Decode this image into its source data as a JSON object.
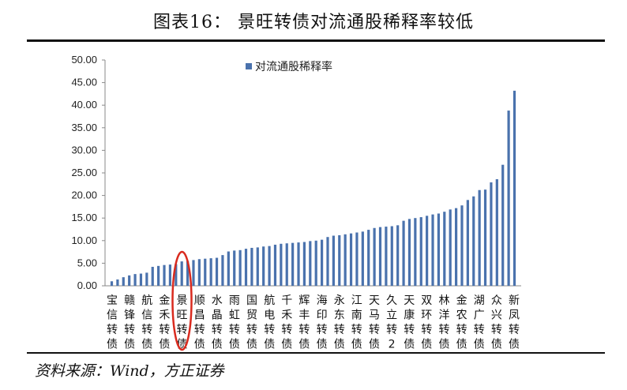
{
  "figure": {
    "title": "图表16：  景旺转债对流通股稀释率较低",
    "source": "资料来源：Wind，方正证券"
  },
  "colors": {
    "bar": "#4a72ad",
    "highlight": "#d92b1f",
    "axis": "#8a8a8a"
  },
  "chart_data": {
    "type": "bar",
    "title": "",
    "xlabel": "",
    "ylabel": "",
    "ylim": [
      0,
      50
    ],
    "yticks": [
      "0.00",
      "5.00",
      "10.00",
      "15.00",
      "20.00",
      "25.00",
      "30.00",
      "35.00",
      "40.00",
      "45.00",
      "50.00"
    ],
    "grid": false,
    "legend_position": "top-center",
    "series": [
      {
        "name": "对流通股稀释率",
        "values": [
          1.0,
          1.4,
          1.9,
          2.3,
          2.6,
          2.7,
          2.9,
          4.2,
          4.4,
          4.6,
          4.7,
          4.8,
          5.4,
          5.5,
          5.7,
          5.9,
          6.0,
          6.1,
          6.2,
          6.8,
          7.6,
          7.8,
          7.9,
          8.2,
          8.4,
          8.5,
          8.7,
          8.8,
          9.1,
          9.3,
          9.4,
          9.5,
          9.6,
          9.7,
          9.9,
          10.0,
          10.2,
          10.8,
          11.1,
          11.2,
          11.4,
          11.6,
          11.8,
          12.0,
          12.4,
          12.8,
          13.0,
          13.1,
          13.2,
          13.4,
          14.4,
          14.8,
          15.0,
          15.2,
          15.5,
          15.8,
          16.0,
          16.4,
          16.9,
          17.2,
          17.8,
          19.0,
          19.8,
          21.2,
          21.3,
          22.9,
          23.6,
          26.8,
          38.8,
          43.2
        ]
      }
    ],
    "x_labels_shown": [
      "宝信转债",
      "赣锋转债",
      "航信转债",
      "金禾转债",
      "景旺转债",
      "顺昌转债",
      "水晶转债",
      "雨虹转债",
      "国贸转债",
      "航电转债",
      "千禾转债",
      "辉丰转债",
      "海印转债",
      "永东转债",
      "江南转债",
      "天马转债",
      "久立转2",
      "天康转债",
      "双环转债",
      "林洋转债",
      "金农转债",
      "湖广转债",
      "众兴转债",
      "新凤转债"
    ],
    "highlighted_label": "景旺转债"
  }
}
